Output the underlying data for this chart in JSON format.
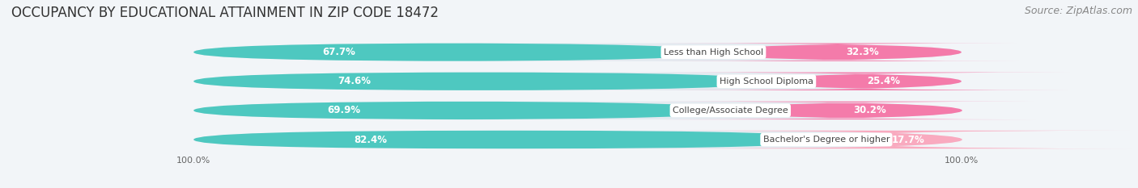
{
  "title": "OCCUPANCY BY EDUCATIONAL ATTAINMENT IN ZIP CODE 18472",
  "source": "Source: ZipAtlas.com",
  "categories": [
    "Less than High School",
    "High School Diploma",
    "College/Associate Degree",
    "Bachelor's Degree or higher"
  ],
  "owner_pct": [
    67.7,
    74.6,
    69.9,
    82.4
  ],
  "renter_pct": [
    32.3,
    25.4,
    30.2,
    17.7
  ],
  "owner_color": "#4EC8C0",
  "renter_color": "#F47BAA",
  "renter_color_last": "#F9AABF",
  "background_color": "#F2F5F8",
  "bar_bg_color": "#E4EAF0",
  "title_fontsize": 12,
  "source_fontsize": 9,
  "label_fontsize": 8.5,
  "category_fontsize": 8,
  "bar_height": 0.62
}
